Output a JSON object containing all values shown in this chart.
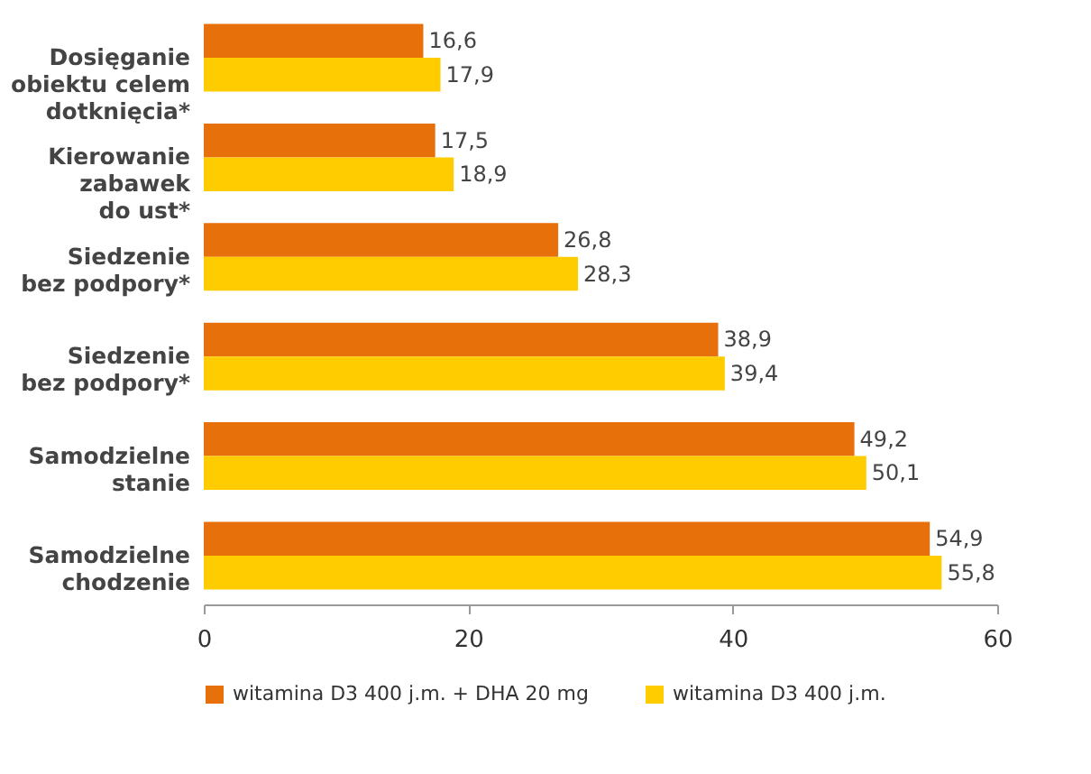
{
  "chart_data": {
    "type": "bar",
    "orientation": "horizontal",
    "categories": [
      "Dosięganie\nobiektu celem\ndotknięcia*",
      "Kierowanie\nzabawek\ndo ust*",
      "Siedzenie\nbez podpory*",
      "Siedzenie\nbez podpory*",
      "Samodzielne\nstanie",
      "Samodzielne\nchodzenie"
    ],
    "series": [
      {
        "name": "witamina D3 400 j.m. + DHA 20 mg",
        "color": "#e8700a",
        "values": [
          16.6,
          17.5,
          26.8,
          38.9,
          49.2,
          54.9
        ],
        "value_labels": [
          "16,6",
          "17,5",
          "26,8",
          "38,9",
          "49,2",
          "54,9"
        ]
      },
      {
        "name": "witamina D3 400 j.m.",
        "color": "#ffcc00",
        "values": [
          17.9,
          18.9,
          28.3,
          39.4,
          50.1,
          55.8
        ],
        "value_labels": [
          "17,9",
          "18,9",
          "28,3",
          "39,4",
          "50,1",
          "55,8"
        ]
      }
    ],
    "xlim": [
      0,
      60
    ],
    "xticks": [
      0,
      20,
      40,
      60
    ],
    "legend": "bottom"
  }
}
